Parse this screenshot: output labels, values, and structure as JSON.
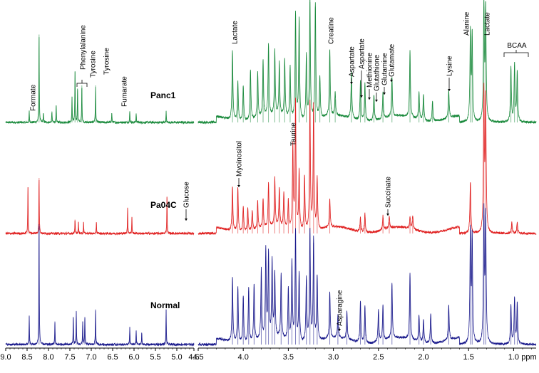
{
  "chart_data": {
    "type": "line",
    "title": "",
    "xlabel": "ppm",
    "xlim_left": [
      9.0,
      4.6
    ],
    "xlim_right": [
      4.5,
      0.75
    ],
    "x_reversed": true,
    "ylabel": "",
    "grid": false,
    "ticks_left": [
      {
        "value": 9.0,
        "label": "9.0"
      },
      {
        "value": 8.5,
        "label": "8.5"
      },
      {
        "value": 8.0,
        "label": "8.0"
      },
      {
        "value": 7.5,
        "label": "7.5"
      },
      {
        "value": 7.0,
        "label": "7.0"
      },
      {
        "value": 6.5,
        "label": "6.5"
      },
      {
        "value": 6.0,
        "label": "6.0"
      },
      {
        "value": 5.5,
        "label": "5.5"
      },
      {
        "value": 5.0,
        "label": "5.0"
      },
      {
        "value": 4.6,
        "label": "4.6"
      }
    ],
    "ticks_right": [
      {
        "value": 4.5,
        "label": "4.5"
      },
      {
        "value": 4.0,
        "label": "4.0"
      },
      {
        "value": 3.5,
        "label": "3.5"
      },
      {
        "value": 3.0,
        "label": "3.0"
      },
      {
        "value": 2.5,
        "label": "2.5"
      },
      {
        "value": 2.0,
        "label": "2.0"
      },
      {
        "value": 1.5,
        "label": "1.5"
      },
      {
        "value": 1.0,
        "label": "1.0"
      }
    ],
    "series": [
      {
        "name": "Panc1",
        "color": "#1a8a3c",
        "peaks": [
          [
            8.45,
            0.12
          ],
          [
            8.22,
            0.95
          ],
          [
            8.12,
            0.1
          ],
          [
            7.92,
            0.12
          ],
          [
            7.82,
            0.18
          ],
          [
            7.45,
            0.28
          ],
          [
            7.38,
            0.55
          ],
          [
            7.32,
            0.35
          ],
          [
            7.22,
            0.4
          ],
          [
            6.9,
            0.4
          ],
          [
            6.52,
            0.1
          ],
          [
            6.1,
            0.12
          ],
          [
            5.95,
            0.1
          ],
          [
            5.25,
            0.12
          ],
          [
            4.12,
            0.75
          ],
          [
            4.06,
            0.42
          ],
          [
            4.0,
            0.38
          ],
          [
            3.92,
            0.55
          ],
          [
            3.84,
            0.5
          ],
          [
            3.78,
            0.62
          ],
          [
            3.72,
            0.78
          ],
          [
            3.65,
            0.7
          ],
          [
            3.6,
            0.58
          ],
          [
            3.54,
            0.62
          ],
          [
            3.48,
            0.55
          ],
          [
            3.42,
            1.15
          ],
          [
            3.38,
            1.1
          ],
          [
            3.3,
            0.7
          ],
          [
            3.26,
            1.3
          ],
          [
            3.2,
            1.25
          ],
          [
            3.15,
            0.45
          ],
          [
            3.04,
            0.72
          ],
          [
            2.98,
            0.25
          ],
          [
            2.8,
            0.5
          ],
          [
            2.7,
            0.42
          ],
          [
            2.65,
            0.4
          ],
          [
            2.55,
            0.28
          ],
          [
            2.45,
            0.28
          ],
          [
            2.35,
            0.42
          ],
          [
            2.15,
            0.72
          ],
          [
            2.05,
            0.3
          ],
          [
            2.0,
            0.28
          ],
          [
            1.9,
            0.22
          ],
          [
            1.72,
            0.3
          ],
          [
            1.48,
            0.95
          ],
          [
            1.46,
            0.93
          ],
          [
            1.33,
            1.25
          ],
          [
            1.31,
            1.22
          ],
          [
            1.03,
            0.58
          ],
          [
            0.99,
            0.62
          ],
          [
            0.96,
            0.55
          ]
        ]
      },
      {
        "name": "Pa04C",
        "color": "#e02020",
        "peaks": [
          [
            8.48,
            0.5
          ],
          [
            8.22,
            0.6
          ],
          [
            7.38,
            0.15
          ],
          [
            7.3,
            0.12
          ],
          [
            7.18,
            0.12
          ],
          [
            6.88,
            0.12
          ],
          [
            6.15,
            0.28
          ],
          [
            6.05,
            0.18
          ],
          [
            5.23,
            0.4
          ],
          [
            4.12,
            0.48
          ],
          [
            4.06,
            0.48
          ],
          [
            4.0,
            0.28
          ],
          [
            3.95,
            0.25
          ],
          [
            3.9,
            0.22
          ],
          [
            3.84,
            0.3
          ],
          [
            3.78,
            0.32
          ],
          [
            3.72,
            0.48
          ],
          [
            3.65,
            0.52
          ],
          [
            3.6,
            0.42
          ],
          [
            3.55,
            0.38
          ],
          [
            3.5,
            0.3
          ],
          [
            3.45,
            0.9
          ],
          [
            3.42,
            1.4
          ],
          [
            3.38,
            0.65
          ],
          [
            3.32,
            0.6
          ],
          [
            3.26,
            1.4
          ],
          [
            3.22,
            1.35
          ],
          [
            3.18,
            0.55
          ],
          [
            3.04,
            0.3
          ],
          [
            2.7,
            0.15
          ],
          [
            2.65,
            0.2
          ],
          [
            2.45,
            0.15
          ],
          [
            2.38,
            0.12
          ],
          [
            2.15,
            0.12
          ],
          [
            2.12,
            0.14
          ],
          [
            1.48,
            0.55
          ],
          [
            1.33,
            1.5
          ],
          [
            1.31,
            1.45
          ],
          [
            1.02,
            0.12
          ],
          [
            0.96,
            0.12
          ]
        ]
      },
      {
        "name": "Normal",
        "color": "#1a1a8c",
        "peaks": [
          [
            8.45,
            0.3
          ],
          [
            8.22,
            1.3
          ],
          [
            7.85,
            0.25
          ],
          [
            7.42,
            0.3
          ],
          [
            7.35,
            0.35
          ],
          [
            7.2,
            0.25
          ],
          [
            7.15,
            0.3
          ],
          [
            6.9,
            0.38
          ],
          [
            6.1,
            0.18
          ],
          [
            5.95,
            0.15
          ],
          [
            5.82,
            0.12
          ],
          [
            5.25,
            0.38
          ],
          [
            4.12,
            0.7
          ],
          [
            4.06,
            0.6
          ],
          [
            4.0,
            0.5
          ],
          [
            3.94,
            0.58
          ],
          [
            3.88,
            0.62
          ],
          [
            3.8,
            0.75
          ],
          [
            3.75,
            0.95
          ],
          [
            3.72,
            0.9
          ],
          [
            3.68,
            0.82
          ],
          [
            3.65,
            0.68
          ],
          [
            3.58,
            0.7
          ],
          [
            3.5,
            0.55
          ],
          [
            3.46,
            0.85
          ],
          [
            3.42,
            1.2
          ],
          [
            3.38,
            0.75
          ],
          [
            3.3,
            0.7
          ],
          [
            3.26,
            1.2
          ],
          [
            3.22,
            1.1
          ],
          [
            3.18,
            0.7
          ],
          [
            3.04,
            0.5
          ],
          [
            2.95,
            0.25
          ],
          [
            2.85,
            0.3
          ],
          [
            2.7,
            0.45
          ],
          [
            2.65,
            0.4
          ],
          [
            2.5,
            0.35
          ],
          [
            2.45,
            0.38
          ],
          [
            2.35,
            0.6
          ],
          [
            2.15,
            0.72
          ],
          [
            2.05,
            0.28
          ],
          [
            2.0,
            0.25
          ],
          [
            1.92,
            0.32
          ],
          [
            1.72,
            0.38
          ],
          [
            1.48,
            1.2
          ],
          [
            1.46,
            1.15
          ],
          [
            1.33,
            1.4
          ],
          [
            1.31,
            1.38
          ],
          [
            1.03,
            0.42
          ],
          [
            0.99,
            0.5
          ],
          [
            0.96,
            0.45
          ]
        ]
      }
    ],
    "annotations": [
      {
        "label": "Formate",
        "series": "Panc1"
      },
      {
        "label": "Phenylalanine",
        "series": "Panc1"
      },
      {
        "label": "Tyrosine",
        "series": "Panc1"
      },
      {
        "label": "Tyrosine",
        "series": "Panc1"
      },
      {
        "label": "Fumarate",
        "series": "Panc1"
      },
      {
        "label": "Lactate",
        "series": "Panc1"
      },
      {
        "label": "Creatine",
        "series": "Panc1"
      },
      {
        "label": "Aspartate",
        "series": "Panc1"
      },
      {
        "label": "Aspartate",
        "series": "Panc1"
      },
      {
        "label": "Methionine",
        "series": "Panc1"
      },
      {
        "label": "Glutathione",
        "series": "Panc1"
      },
      {
        "label": "Glutamine",
        "series": "Panc1"
      },
      {
        "label": "Glutamate",
        "series": "Panc1"
      },
      {
        "label": "Lysine",
        "series": "Panc1"
      },
      {
        "label": "Alanine",
        "series": "Panc1"
      },
      {
        "label": "Lactate",
        "series": "Panc1"
      },
      {
        "label": "BCAA",
        "series": "Panc1"
      },
      {
        "label": "Glucose",
        "series": "Pa04C"
      },
      {
        "label": "Myoinositol",
        "series": "Pa04C"
      },
      {
        "label": "Taurine",
        "series": "Pa04C"
      },
      {
        "label": "Succinate",
        "series": "Pa04C"
      },
      {
        "label": "Asparagine",
        "series": "Normal"
      }
    ]
  }
}
